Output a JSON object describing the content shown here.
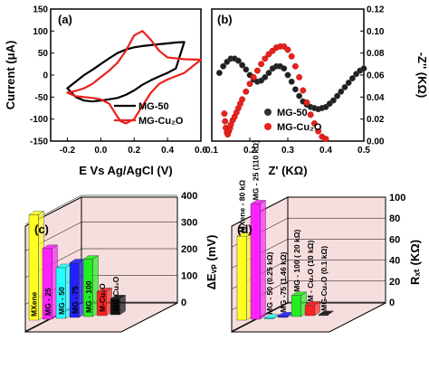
{
  "chart_data": [
    {
      "panel": "(a)",
      "type": "line",
      "xlabel": "E Vs Ag/AgCl (V)",
      "ylabel": "Current (μA)",
      "xlim": [
        -0.3,
        0.6
      ],
      "ylim": [
        -150,
        150
      ],
      "xticks": [
        "-0.2",
        "0.0",
        "0.2",
        "0.4",
        "0.6"
      ],
      "yticks": [
        "-150",
        "-100",
        "-50",
        "0",
        "50",
        "100",
        "150"
      ],
      "legend_position": "bottom-right",
      "series": [
        {
          "name": "MG-50",
          "color": "#000000",
          "x": [
            -0.2,
            -0.15,
            -0.1,
            -0.05,
            0.0,
            0.05,
            0.1,
            0.15,
            0.2,
            0.25,
            0.3,
            0.35,
            0.4,
            0.45,
            0.5,
            0.45,
            0.4,
            0.35,
            0.3,
            0.25,
            0.2,
            0.15,
            0.1,
            0.05,
            0.0,
            -0.05,
            -0.1,
            -0.15,
            -0.2
          ],
          "y": [
            -30,
            -15,
            0,
            12,
            25,
            38,
            50,
            58,
            63,
            66,
            68,
            70,
            72,
            74,
            75,
            15,
            5,
            -3,
            -12,
            -22,
            -35,
            -45,
            -52,
            -55,
            -58,
            -60,
            -58,
            -50,
            -30
          ]
        },
        {
          "name": "MG-Cu₂O",
          "color": "#e8221c",
          "x": [
            -0.2,
            -0.15,
            -0.1,
            -0.05,
            0.0,
            0.05,
            0.1,
            0.15,
            0.2,
            0.25,
            0.3,
            0.35,
            0.4,
            0.5,
            0.6,
            0.5,
            0.4,
            0.35,
            0.3,
            0.25,
            0.2,
            0.15,
            0.12,
            0.1,
            0.05,
            0.0,
            -0.05,
            -0.1,
            -0.15,
            -0.2
          ],
          "y": [
            -40,
            -36,
            -30,
            -20,
            -5,
            10,
            28,
            55,
            90,
            100,
            80,
            55,
            40,
            36,
            35,
            5,
            -10,
            -20,
            -40,
            -70,
            -100,
            -110,
            -105,
            -95,
            -65,
            -55,
            -52,
            -50,
            -48,
            -40
          ]
        }
      ]
    },
    {
      "panel": "(b)",
      "type": "scatter",
      "xlabel": "Z' (KΩ)",
      "ylabel": "-Z'' (KΩ)",
      "xlim": [
        0.1,
        0.5
      ],
      "ylim": [
        0,
        0.12
      ],
      "xticks": [
        "0.1",
        "0.2",
        "0.3",
        "0.4",
        "0.5"
      ],
      "yticks": [
        "0.00",
        "0.02",
        "0.04",
        "0.06",
        "0.08",
        "0.10",
        "0.12"
      ],
      "legend_position": "bottom-center",
      "series": [
        {
          "name": "MG-50",
          "color": "#202020",
          "x": [
            0.12,
            0.13,
            0.14,
            0.15,
            0.16,
            0.17,
            0.18,
            0.19,
            0.2,
            0.21,
            0.22,
            0.23,
            0.24,
            0.25,
            0.26,
            0.27,
            0.28,
            0.29,
            0.3,
            0.31,
            0.32,
            0.33,
            0.34,
            0.35,
            0.36,
            0.37,
            0.38,
            0.39,
            0.4,
            0.41,
            0.42,
            0.43,
            0.44,
            0.45,
            0.46,
            0.47,
            0.48,
            0.49,
            0.5
          ],
          "y": [
            0.062,
            0.068,
            0.072,
            0.075,
            0.075,
            0.073,
            0.069,
            0.065,
            0.06,
            0.056,
            0.054,
            0.055,
            0.058,
            0.062,
            0.066,
            0.068,
            0.068,
            0.066,
            0.06,
            0.054,
            0.047,
            0.041,
            0.036,
            0.033,
            0.031,
            0.03,
            0.029,
            0.03,
            0.031,
            0.034,
            0.037,
            0.041,
            0.045,
            0.049,
            0.053,
            0.057,
            0.061,
            0.064,
            0.066
          ]
        },
        {
          "name": "MG-Cu₂O",
          "color": "#e8221c",
          "x": [
            0.133,
            0.135,
            0.137,
            0.14,
            0.142,
            0.145,
            0.148,
            0.15,
            0.155,
            0.16,
            0.165,
            0.17,
            0.175,
            0.18,
            0.19,
            0.2,
            0.21,
            0.22,
            0.23,
            0.24,
            0.25,
            0.26,
            0.27,
            0.28,
            0.29,
            0.3,
            0.31,
            0.32,
            0.33,
            0.34,
            0.35,
            0.36,
            0.37,
            0.38,
            0.39,
            0.4
          ],
          "y": [
            0.025,
            0.018,
            0.012,
            0.008,
            0.006,
            0.009,
            0.012,
            0.015,
            0.019,
            0.022,
            0.026,
            0.03,
            0.034,
            0.038,
            0.045,
            0.052,
            0.058,
            0.064,
            0.07,
            0.075,
            0.079,
            0.082,
            0.085,
            0.086,
            0.086,
            0.083,
            0.077,
            0.068,
            0.058,
            0.046,
            0.035,
            0.024,
            0.016,
            0.009,
            0.004,
            0.002
          ]
        }
      ]
    },
    {
      "panel": "(c)",
      "type": "bar",
      "ylabel": "ΔEᵥₚ (mV)",
      "ylim": [
        0,
        400
      ],
      "yticks": [
        "0",
        "100",
        "200",
        "300",
        "400"
      ],
      "categories": [
        "MXene",
        "MG - 25",
        "MG - 50",
        "MG - 75",
        "MG - 100",
        "M-Cu₂O",
        "MG-Cu₂O"
      ],
      "values": [
        395,
        265,
        190,
        205,
        215,
        90,
        60
      ],
      "colors": [
        "#ffff22",
        "#ff22ff",
        "#22ffff",
        "#2222ff",
        "#22ee22",
        "#ff2222",
        "#111111"
      ]
    },
    {
      "panel": "(d)",
      "type": "bar",
      "ylabel": "Rₓₜ (KΩ)",
      "ylim": [
        0,
        100
      ],
      "yticks": [
        "0",
        "20",
        "40",
        "60",
        "80",
        "100"
      ],
      "categories": [
        "MXene - 80 kΩ",
        "MG - 25 (110 kΩ)",
        "MG - 50 (0.25 kΩ)",
        "MG -75 (1.46 kΩ)",
        "MG - 100 ( 20 kΩ)",
        "M - Cu₂O (10 kΩ)",
        "MG-Cu₂O (0.1 kΩ)"
      ],
      "values": [
        80,
        110,
        0.25,
        1.46,
        20,
        10,
        0.1
      ],
      "colors": [
        "#ffff22",
        "#ff22ff",
        "#22ffff",
        "#2222ff",
        "#22ee22",
        "#ff2222",
        "#111111"
      ]
    }
  ]
}
